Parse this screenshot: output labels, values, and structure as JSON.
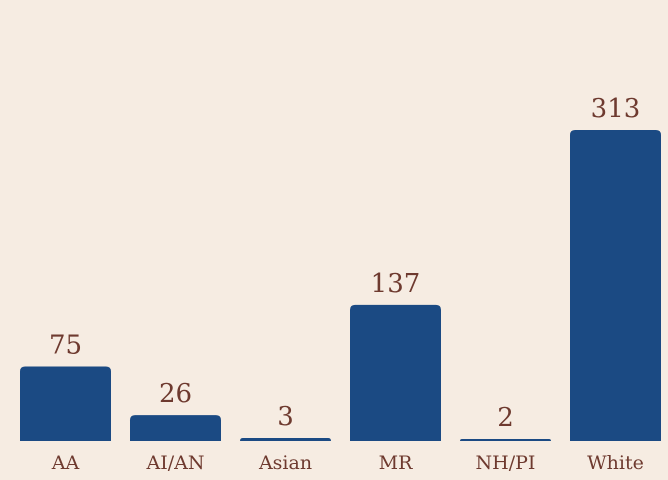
{
  "chart_data": {
    "type": "bar",
    "categories": [
      "AA",
      "AI/AN",
      "Asian",
      "MR",
      "NH/PI",
      "White"
    ],
    "values": [
      75,
      26,
      3,
      137,
      2,
      313
    ],
    "color": "#1b4a83"
  }
}
